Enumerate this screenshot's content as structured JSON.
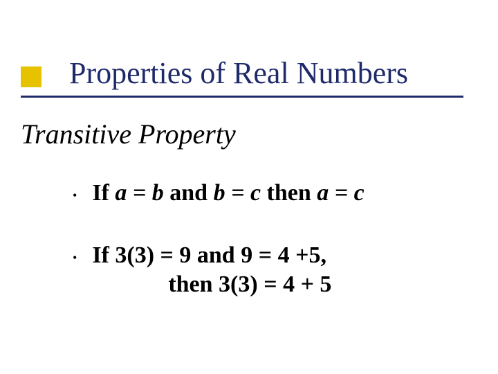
{
  "colors": {
    "title": "#1f2a6b",
    "accent": "#e6c200",
    "underline": "#1f2a6b",
    "text": "#000000",
    "background": "#ffffff"
  },
  "title": "Properties of Real Numbers",
  "subtitle": "Transitive Property",
  "bullets": [
    {
      "segments": [
        {
          "text": "If ",
          "bold": true,
          "italic": false
        },
        {
          "text": "a = b ",
          "bold": true,
          "italic": true
        },
        {
          "text": "and ",
          "bold": true,
          "italic": false
        },
        {
          "text": "b = c ",
          "bold": true,
          "italic": true
        },
        {
          "text": "then  ",
          "bold": true,
          "italic": false
        },
        {
          "text": "a = c",
          "bold": true,
          "italic": true
        }
      ]
    },
    {
      "segments": [
        {
          "text": "If 3(3) = 9 and 9 = 4 +5,",
          "bold": true,
          "italic": false
        }
      ],
      "line2": "then 3(3) = 4 + 5"
    }
  ]
}
